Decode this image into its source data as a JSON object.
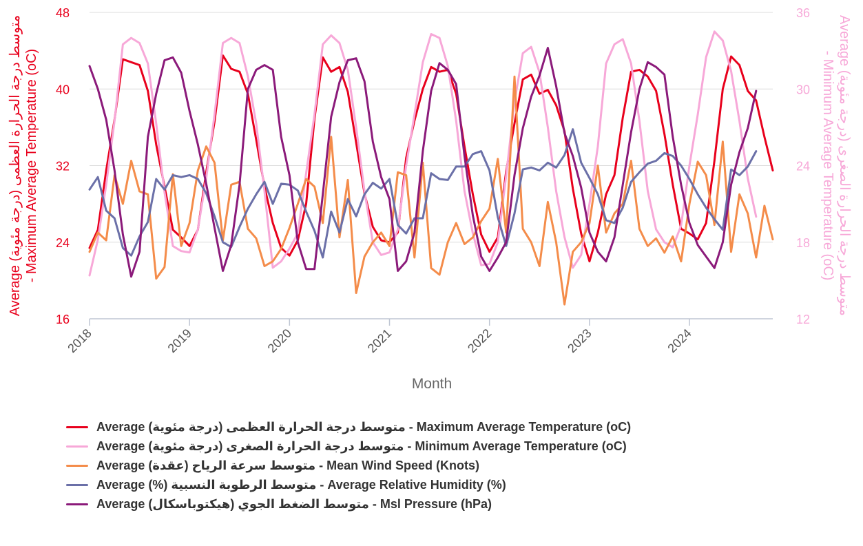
{
  "chart_data": {
    "type": "line",
    "title": "",
    "xlabel": "Month",
    "x_start": "2018-01",
    "x_end": "2024-11",
    "x_ticks": [
      "2018",
      "2019",
      "2020",
      "2021",
      "2022",
      "2023",
      "2024"
    ],
    "y_left": {
      "label": "Average (درجة مئوية) متوسط درجة الحرارة العظمى - Maximum Average Temperature (oC)",
      "range": [
        16,
        48
      ],
      "ticks": [
        "16",
        "24",
        "32",
        "40",
        "48"
      ],
      "color": "#e8001c"
    },
    "y_right": {
      "label": "Average (درجة مئوية) متوسط درجة الحرارة الصغرى - Minimum Average Temperature (oC)",
      "range": [
        12,
        36
      ],
      "ticks": [
        "12",
        "18",
        "24",
        "30",
        "36"
      ],
      "color": "#f7a8d8"
    },
    "grid": true,
    "legend_position": "bottom-left",
    "series": [
      {
        "name": "Average (درجة مئوية) متوسط درجة الحرارة العظمى - Maximum Average Temperature (oC)",
        "color": "#e8001c",
        "axis": "left",
        "values": [
          23.4,
          25.3,
          31.5,
          36.8,
          43.1,
          42.8,
          42.5,
          39.8,
          34.2,
          29.8,
          25.3,
          24.5,
          23.6,
          25.3,
          31.3,
          36.6,
          43.5,
          42.1,
          41.8,
          39.5,
          34.7,
          29.8,
          26.0,
          23.4,
          22.6,
          24.2,
          28.0,
          36.9,
          43.3,
          41.8,
          42.3,
          39.7,
          34.4,
          29.1,
          25.6,
          24.2,
          24.0,
          25.0,
          32.8,
          36.7,
          40.0,
          42.3,
          41.8,
          42.0,
          39.5,
          34.0,
          29.0,
          24.8,
          23.0,
          24.5,
          31.4,
          36.4,
          41.0,
          41.5,
          39.5,
          39.9,
          38.3,
          35.6,
          29.6,
          24.9,
          22.0,
          25.0,
          29.0,
          31.0,
          37.0,
          41.8,
          42.0,
          41.3,
          39.8,
          35.3,
          30.0,
          25.4,
          24.9,
          24.3,
          26.0,
          32.5,
          40.0,
          43.4,
          42.5,
          39.8,
          38.8,
          35.0,
          31.5
        ]
      },
      {
        "name": "Average (درجة مئوية) متوسط درجة الحرارة الصغرى - Minimum Average Temperature (oC)",
        "color": "#f7a8d8",
        "axis": "right",
        "values": [
          15.4,
          18.2,
          22.5,
          27.5,
          33.5,
          34.0,
          33.6,
          32.0,
          27.3,
          21.9,
          17.7,
          17.3,
          17.2,
          19.0,
          23.0,
          28.0,
          33.6,
          34.0,
          33.6,
          31.0,
          27.3,
          22.0,
          16.0,
          16.5,
          17.5,
          18.7,
          23.4,
          28.0,
          33.5,
          34.2,
          33.6,
          31.5,
          27.0,
          22.0,
          18.0,
          17.0,
          17.2,
          19.0,
          24.0,
          28.0,
          32.1,
          34.3,
          34.0,
          31.8,
          27.5,
          22.0,
          18.7,
          16.2,
          16.3,
          18.0,
          23.2,
          29.0,
          32.8,
          33.3,
          31.3,
          27.0,
          22.0,
          18.4,
          16.0,
          17.0,
          21.0,
          25.5,
          32.0,
          33.5,
          33.9,
          32.0,
          27.5,
          22.0,
          19.0,
          18.0,
          17.6,
          19.3,
          24.0,
          28.0,
          32.5,
          34.5,
          33.8,
          31.4,
          27.5,
          23.0,
          20.0
        ]
      },
      {
        "name": "Average (عقدة) متوسط سرعة الرياح - Mean Wind Speed (Knots)",
        "color": "#f48c4a",
        "axis": "left",
        "values": [
          23.0,
          25.0,
          24.2,
          31.0,
          28.0,
          32.5,
          29.3,
          29.0,
          20.2,
          21.4,
          31.1,
          23.6,
          26.0,
          31.5,
          34.0,
          32.3,
          24.2,
          30.0,
          30.3,
          25.4,
          24.4,
          21.5,
          22.0,
          23.3,
          25.5,
          28.0,
          30.6,
          29.8,
          26.0,
          35.0,
          24.5,
          30.5,
          18.7,
          22.5,
          24.0,
          25.0,
          23.6,
          31.3,
          31.0,
          22.4,
          32.3,
          21.3,
          20.6,
          24.0,
          26.0,
          23.8,
          24.5,
          26.2,
          27.5,
          32.7,
          25.0,
          41.3,
          25.4,
          24.0,
          21.5,
          28.2,
          24.0,
          17.5,
          23.0,
          24.0,
          26.0,
          32.0,
          25.0,
          27.0,
          28.0,
          32.5,
          25.4,
          23.6,
          24.4,
          22.9,
          24.6,
          22.0,
          28.0,
          32.4,
          31.0,
          25.8,
          34.5,
          23.0,
          29.0,
          27.0,
          22.4,
          27.8,
          24.3
        ]
      },
      {
        "name": "Average (%) متوسط الرطوبة النسبية - Average Relative Humidity (%)",
        "color": "#6b70a8",
        "axis": "left",
        "values": [
          29.5,
          30.8,
          27.3,
          26.5,
          23.4,
          22.6,
          24.6,
          26.1,
          30.6,
          29.5,
          31.0,
          30.8,
          31.0,
          30.6,
          29.1,
          26.7,
          24.0,
          23.5,
          25.6,
          27.5,
          29.0,
          30.3,
          28.0,
          30.1,
          30.0,
          29.4,
          27.2,
          25.2,
          22.4,
          27.2,
          25.0,
          28.5,
          26.7,
          29.0,
          30.2,
          29.6,
          30.6,
          25.8,
          24.9,
          26.5,
          26.5,
          31.2,
          30.6,
          30.5,
          31.9,
          31.9,
          33.2,
          33.5,
          31.5,
          26.6,
          23.6,
          27.0,
          31.6,
          31.8,
          31.5,
          32.3,
          31.8,
          33.1,
          35.8,
          32.3,
          30.7,
          29.0,
          26.3,
          26.0,
          27.6,
          30.3,
          31.3,
          32.2,
          32.5,
          33.3,
          33.0,
          32.0,
          30.6,
          29.0,
          27.6,
          26.4,
          25.3,
          31.6,
          31.0,
          31.9,
          33.5
        ]
      },
      {
        "name": "Average (هيكتوباسكال) متوسط الضغط الجوي - Msl Pressure (hPa)",
        "color": "#8b1a7a",
        "axis": "left",
        "values": [
          42.4,
          40.0,
          36.8,
          31.5,
          24.8,
          20.4,
          23.0,
          35.0,
          39.5,
          43.0,
          43.3,
          41.7,
          37.7,
          34.2,
          30.1,
          25.5,
          21.0,
          23.7,
          30.0,
          40.0,
          42.0,
          42.5,
          42.0,
          35.0,
          31.0,
          24.0,
          21.2,
          21.2,
          29.0,
          37.1,
          40.7,
          43.0,
          43.2,
          40.8,
          34.5,
          30.8,
          28.5,
          21.0,
          22.0,
          25.0,
          33.5,
          39.8,
          42.7,
          42.0,
          40.5,
          33.0,
          26.8,
          22.5,
          21.0,
          22.4,
          24.0,
          31.0,
          35.9,
          39.2,
          41.4,
          44.3,
          40.3,
          35.4,
          33.0,
          29.7,
          25.0,
          23.0,
          22.0,
          24.5,
          30.0,
          35.5,
          40.0,
          42.8,
          42.3,
          41.5,
          35.0,
          30.0,
          26.0,
          23.7,
          22.5,
          21.3,
          24.0,
          30.0,
          33.4,
          35.9,
          39.8
        ]
      }
    ]
  }
}
